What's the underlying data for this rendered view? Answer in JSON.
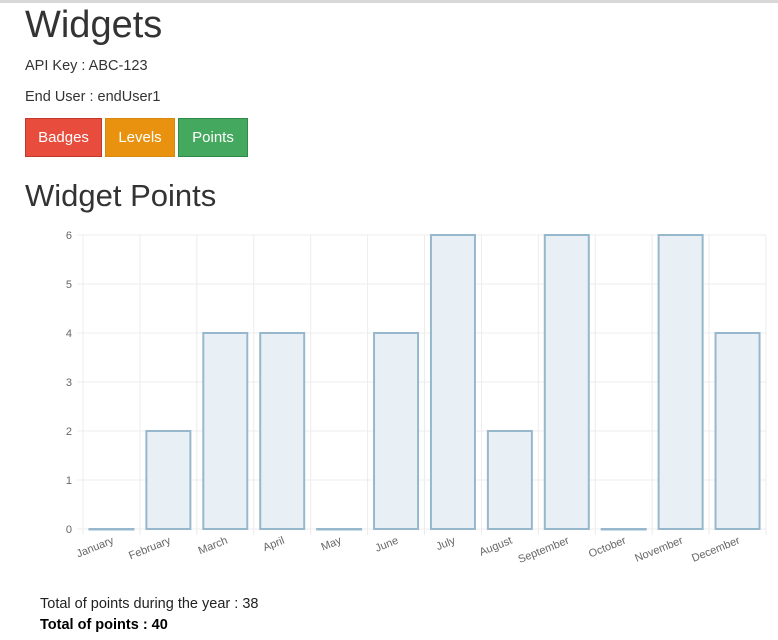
{
  "header": {
    "title": "Widgets",
    "api_key_label": "API Key : ABC-123",
    "end_user_label": "End User : endUser1"
  },
  "buttons": {
    "badges": "Badges",
    "levels": "Levels",
    "points": "Points"
  },
  "section": {
    "title": "Widget Points"
  },
  "chart_data": {
    "type": "bar",
    "categories": [
      "January",
      "February",
      "March",
      "April",
      "May",
      "June",
      "July",
      "August",
      "September",
      "October",
      "November",
      "December"
    ],
    "values": [
      0,
      2,
      4,
      4,
      0,
      4,
      6,
      2,
      6,
      0,
      6,
      4
    ],
    "yticks": [
      "0",
      "1",
      "2",
      "3",
      "4",
      "5",
      "6"
    ],
    "ylim": [
      0,
      6
    ],
    "grid": true,
    "bar_fill": "#e8f0f5",
    "bar_stroke": "#97b8cc",
    "grid_color": "#ececec",
    "tick_color": "#666666"
  },
  "totals": {
    "year_label": "Total of points during the year : 38",
    "total_label": "Total of points : 40"
  }
}
